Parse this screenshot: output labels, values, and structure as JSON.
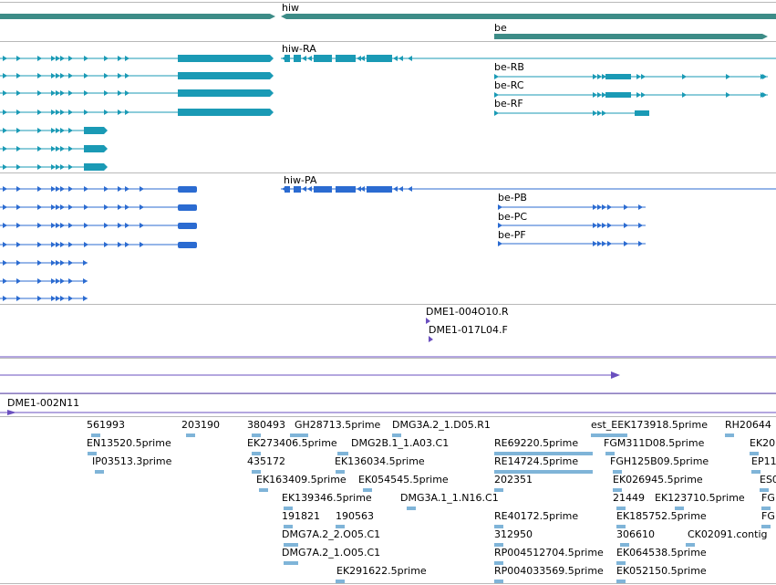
{
  "gene_track": {
    "genes": [
      {
        "name": "hiw"
      },
      {
        "name": "be"
      }
    ]
  },
  "mrna_track": {
    "color": "#1a9ab5",
    "labels": [
      "hiw-RA",
      "be-RB",
      "be-RC",
      "be-RF"
    ]
  },
  "protein_track": {
    "color": "#2b6bd1",
    "labels": [
      "hiw-PA",
      "be-PB",
      "be-PC",
      "be-PF"
    ]
  },
  "clone_track": {
    "color": "#6a4fbf",
    "labels": [
      "DME1-004O10.R",
      "DME1-017L04.F",
      "DME1-002N11"
    ]
  },
  "est_track": {
    "color": "#7fb4d8",
    "labels": [
      "561993",
      "203190",
      "380493",
      "GH28713.5prime",
      "DMG3A.2_1.D05.R1",
      "est_EEK173918.5prime",
      "RH20644",
      "EN13520.5prime",
      "EK273406.5prime",
      "DMG2B.1_1.A03.C1",
      "RE69220.5prime",
      "FGM311D08.5prime",
      "EK20",
      "IP03513.3prime",
      "435172",
      "EK136034.5prime",
      "RE14724.5prime",
      "FGH125B09.5prime",
      "EP11",
      "EK163409.5prime",
      "EK054545.5prime",
      "202351",
      "EK026945.5prime",
      "ES0",
      "EK139346.5prime",
      "DMG3A.1_1.N16.C1",
      "21449",
      "EK123710.5prime",
      "FG",
      "191821",
      "190563",
      "RE40172.5prime",
      "EK185752.5prime",
      "FG",
      "DMG7A.2_2.O05.C1",
      "312950",
      "306610",
      "CK02091.contig",
      "DMG7A.2_1.O05.C1",
      "RP004512704.5prime",
      "EK064538.5prime",
      "EK291622.5prime",
      "RP004033569.5prime",
      "EK052150.5prime"
    ]
  }
}
